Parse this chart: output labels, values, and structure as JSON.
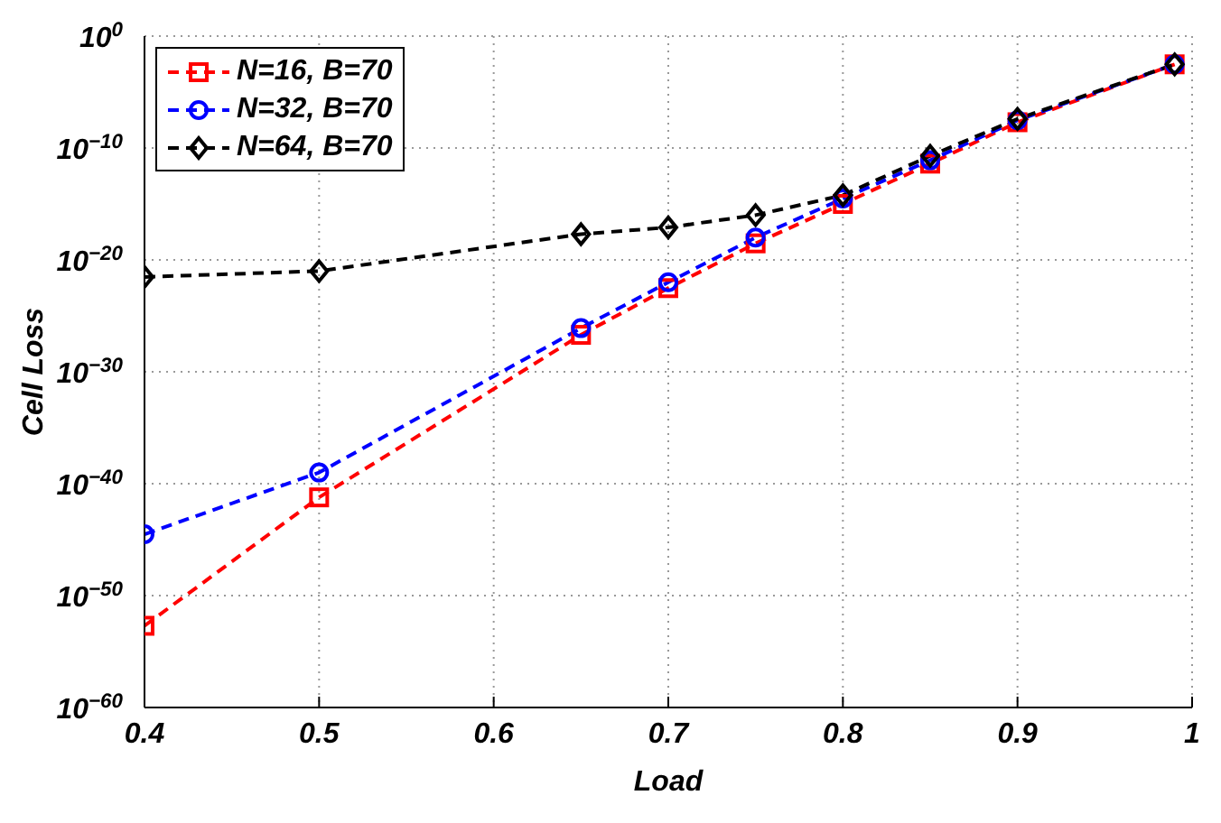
{
  "chart_data": {
    "type": "line",
    "xlabel": "Load",
    "ylabel": "Cell Loss",
    "log": "y",
    "grid": true,
    "legend": "top left",
    "line_style": "dashed",
    "x": [
      0.4,
      0.5,
      0.65,
      0.7,
      0.75,
      0.8,
      0.85,
      0.9,
      0.99
    ],
    "xlim": [
      0.4,
      1
    ],
    "xticks": [
      0.4,
      0.5,
      0.6,
      0.7,
      0.8,
      0.9,
      1
    ],
    "ylim": [
      1e-60,
      1
    ],
    "yticks": [
      {
        "value": 1e-60,
        "label": "10$^{−60}$"
      },
      {
        "value": 1e-50,
        "label": "10$^{−50}$"
      },
      {
        "value": 1e-40,
        "label": "10$^{−40}$"
      },
      {
        "value": 1e-30,
        "label": "10$^{−30}$"
      },
      {
        "value": 1e-20,
        "label": "10$^{−20}$"
      },
      {
        "value": 1e-10,
        "label": "10$^{−10}$"
      },
      {
        "value": 1,
        "label": "10$^{0}$"
      }
    ],
    "series": [
      {
        "name": "N=16, B=70",
        "color": "#ff0000",
        "marker": "square",
        "values": [
          2e-53,
          6e-42,
          2e-27,
          3e-23,
          3e-19,
          1e-15,
          4e-12,
          2e-08,
          0.003
        ]
      },
      {
        "name": "N=32, B=70",
        "color": "#0000ff",
        "marker": "circle",
        "values": [
          3e-45,
          1e-39,
          8e-27,
          1e-22,
          1e-18,
          3e-15,
          8e-12,
          3e-08,
          0.003
        ]
      },
      {
        "name": "N=64, B=70",
        "color": "#000000",
        "marker": "diamond",
        "values": [
          3e-22,
          1e-21,
          2e-18,
          8e-18,
          1e-16,
          6e-15,
          2e-11,
          4e-08,
          0.003
        ]
      }
    ]
  }
}
